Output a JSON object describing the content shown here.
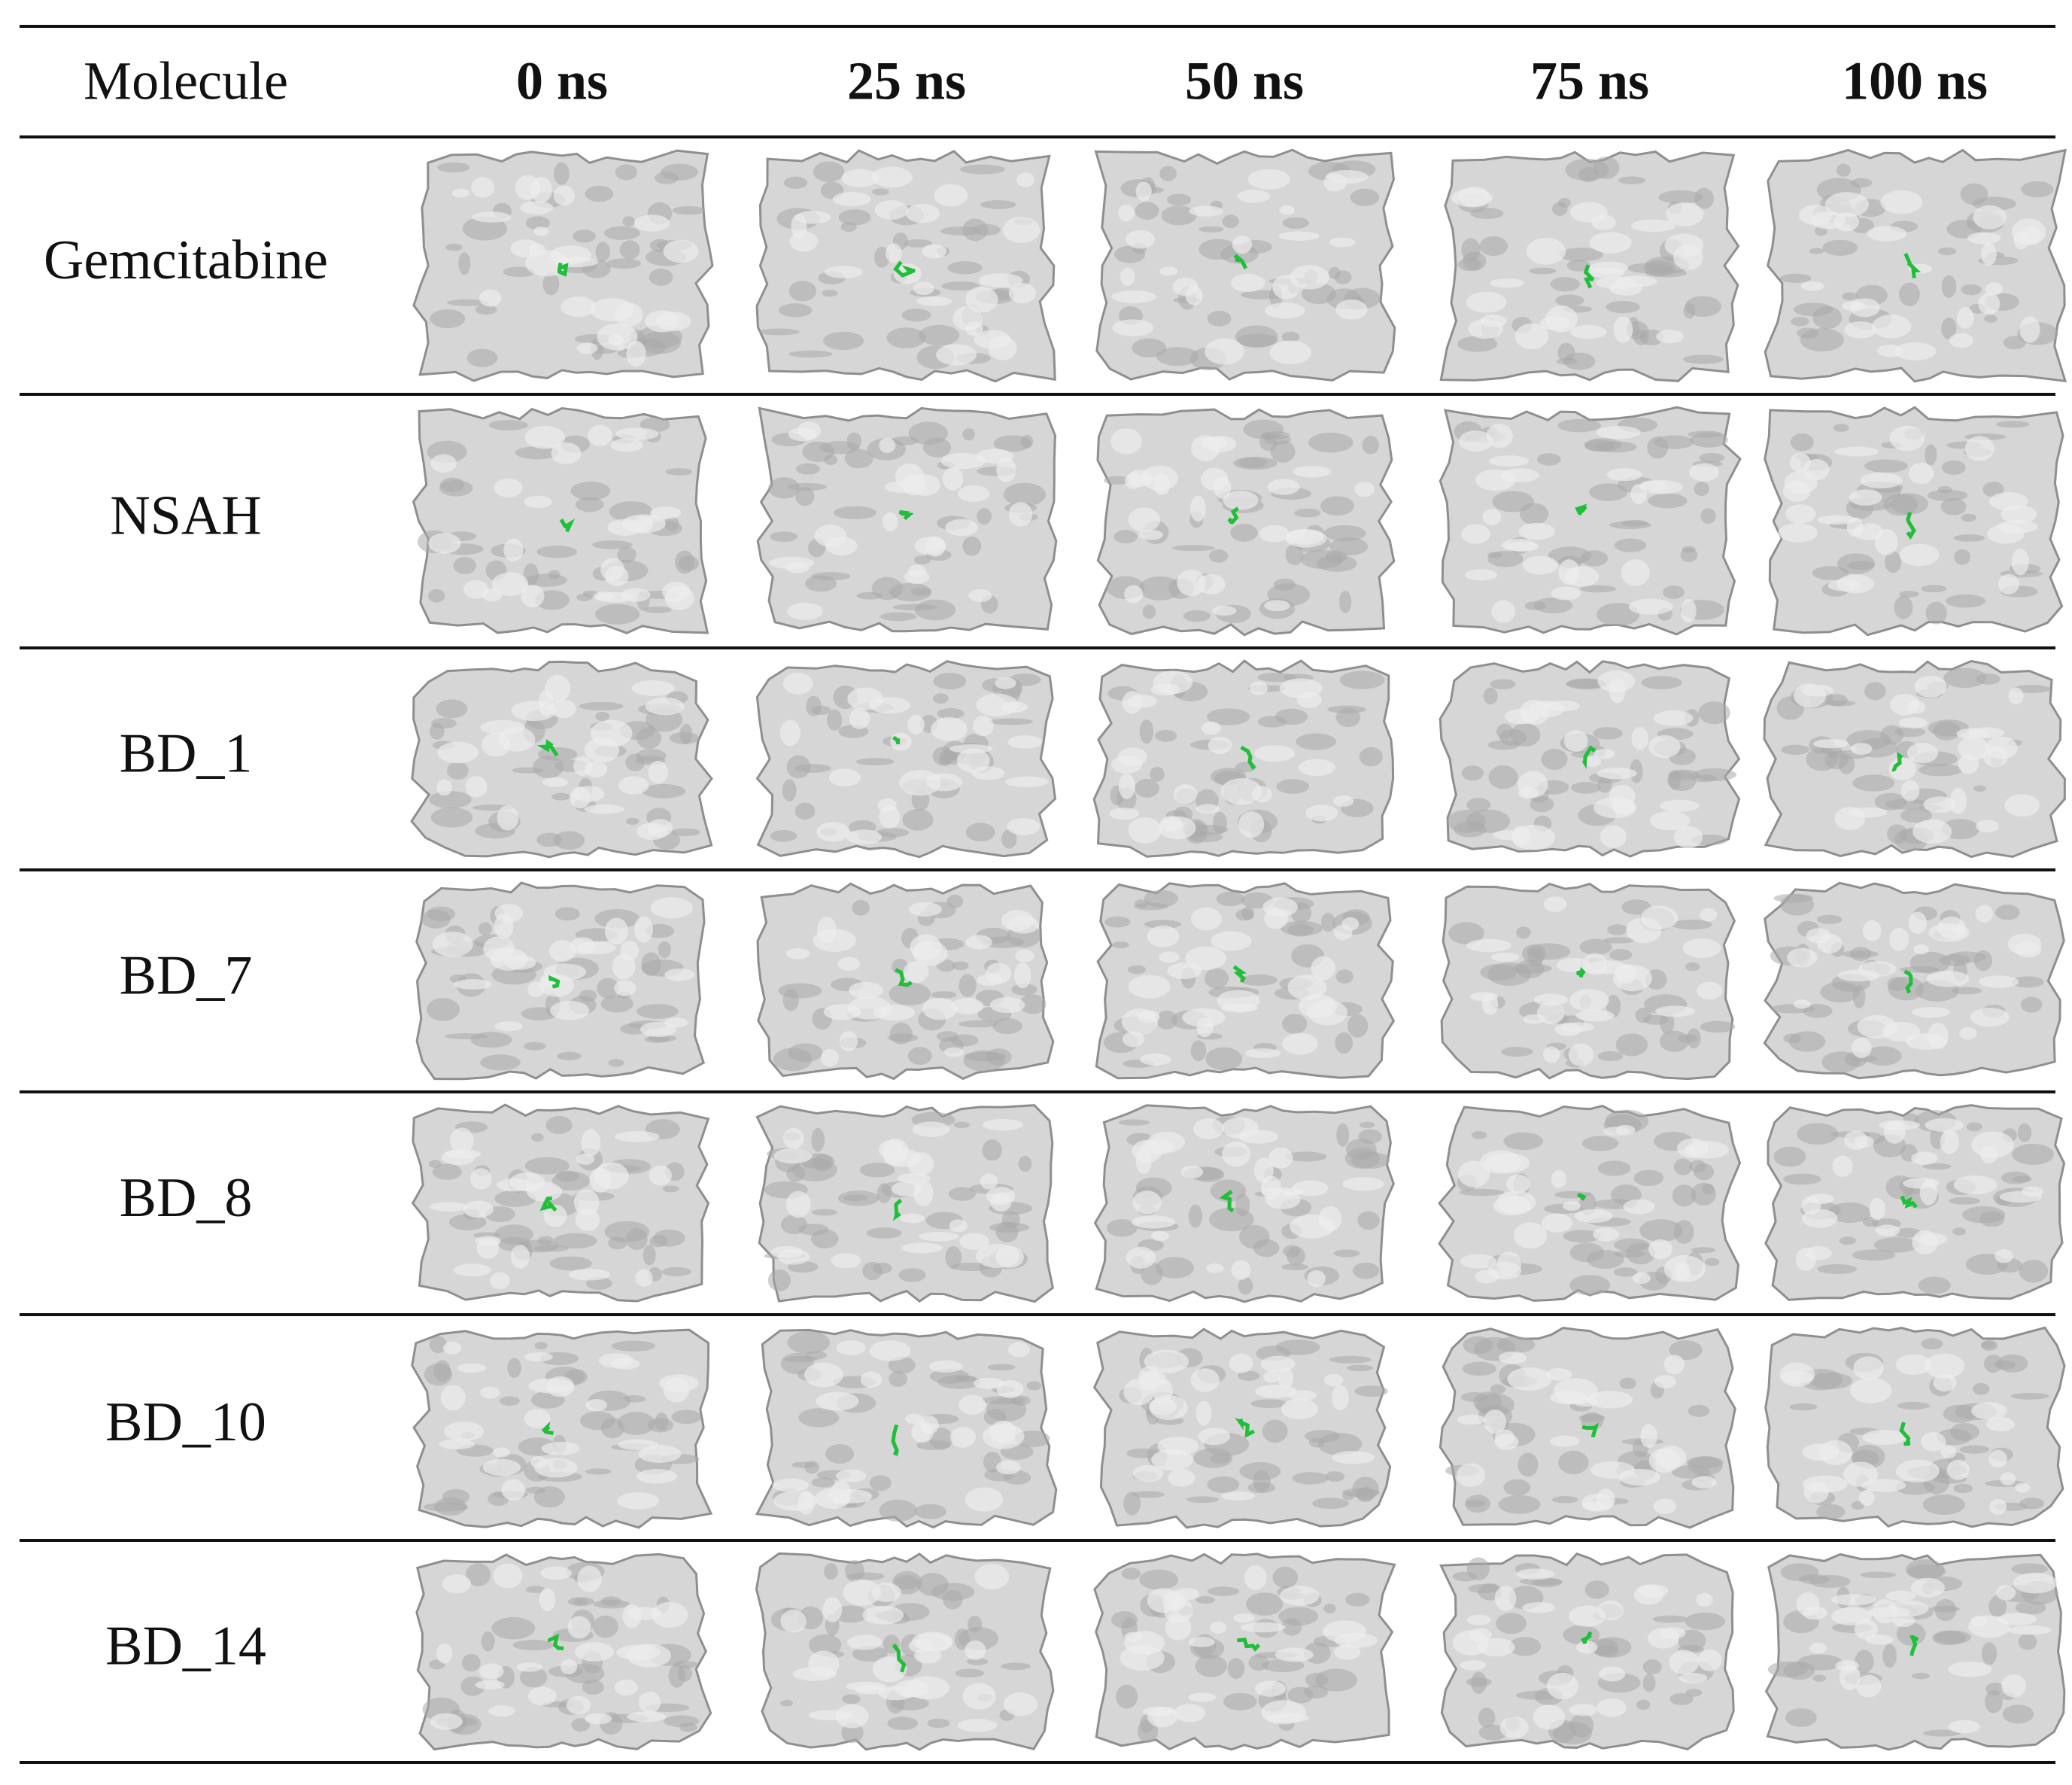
{
  "table": {
    "header": [
      "Molecule",
      "0 ns",
      "25 ns",
      "50 ns",
      "75 ns",
      "100 ns"
    ],
    "rows": [
      "Gemcitabine",
      "NSAH",
      "BD_1",
      "BD_7",
      "BD_8",
      "BD_10",
      "BD_14"
    ]
  }
}
